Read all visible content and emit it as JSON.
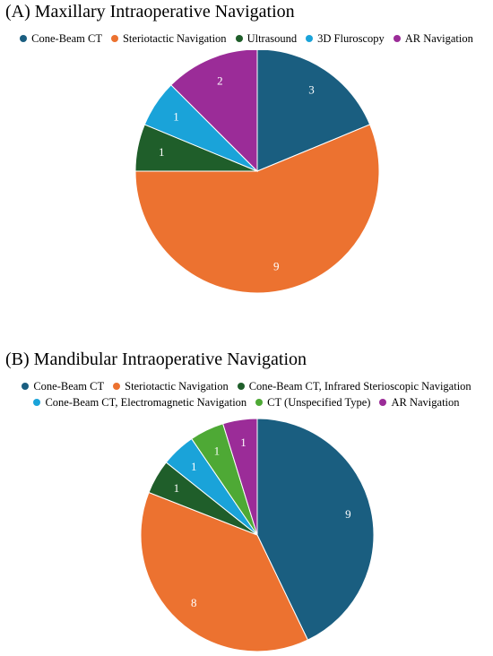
{
  "chart_data": [
    {
      "type": "pie",
      "title": "(A) Maxillary Intraoperative Navigation",
      "legend_position": "top",
      "categories": [
        "Cone-Beam CT",
        "Steriotactic Navigation",
        "Ultrasound",
        "3D Fluroscopy",
        "AR Navigation"
      ],
      "values": [
        3,
        9,
        1,
        1,
        2
      ],
      "colors": [
        "#1a5e80",
        "#ec7230",
        "#1f5e2a",
        "#1aa3d9",
        "#9b2c98"
      ],
      "legend_rows": [
        [
          0,
          1,
          2,
          3,
          4
        ]
      ]
    },
    {
      "type": "pie",
      "title": "(B) Mandibular Intraoperative Navigation",
      "legend_position": "top",
      "categories": [
        "Cone-Beam CT",
        "Steriotactic Navigation",
        "Cone-Beam CT, Infrared Sterioscopic Navigation",
        "Cone-Beam CT, Electromagnetic Navigation",
        "CT (Unspecified Type)",
        "AR Navigation"
      ],
      "values": [
        9,
        8,
        1,
        1,
        1,
        1
      ],
      "colors": [
        "#1a5e80",
        "#ec7230",
        "#1f5e2a",
        "#1aa3d9",
        "#4ea935",
        "#9b2c98"
      ],
      "legend_rows": [
        [
          0,
          1,
          2
        ],
        [
          3,
          4,
          5
        ]
      ]
    }
  ]
}
